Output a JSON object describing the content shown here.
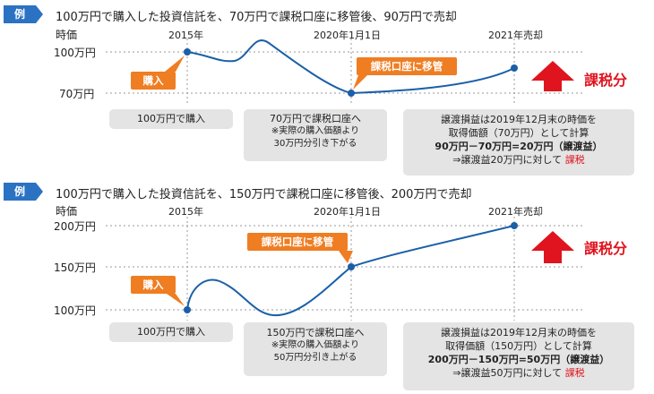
{
  "examples": [
    {
      "tag": "例",
      "heading": "100万円で購入した投資信託を、70万円で課税口座に移管後、90万円で売却",
      "y_axis_title": "時価",
      "y_labels": [
        "100万円",
        "70万円"
      ],
      "x_labels": [
        "2015年",
        "2020年1月1日",
        "2021年売却"
      ],
      "callout_buy": "購入",
      "callout_transfer": "課税口座に移管",
      "taxed_label": "課税分",
      "boxes": {
        "buy": "100万円で購入",
        "transfer_main": "70万円で課税口座へ",
        "transfer_note1": "※実際の購入価額より",
        "transfer_note2": "30万円分引き下がる",
        "calc1": "譲渡損益は2019年12月末の時価を",
        "calc2": "取得価額（70万円）として計算",
        "calc3": "90万円－70万円=20万円（譲渡益）",
        "calc4_prefix": "⇒譲渡益20万円に対して",
        "calc4_taxed": "課税"
      },
      "chart_data": {
        "type": "line",
        "x": [
          "2015年",
          "2020年1月1日",
          "2021年売却"
        ],
        "points": [
          100,
          70,
          90
        ],
        "ylabel": "時価",
        "y_unit": "万円"
      }
    },
    {
      "tag": "例",
      "heading": "100万円で購入した投資信託を、150万円で課税口座に移管後、200万円で売却",
      "y_axis_title": "時価",
      "y_labels": [
        "200万円",
        "150万円",
        "100万円"
      ],
      "x_labels": [
        "2015年",
        "2020年1月1日",
        "2021年売却"
      ],
      "callout_buy": "購入",
      "callout_transfer": "課税口座に移管",
      "taxed_label": "課税分",
      "boxes": {
        "buy": "100万円で購入",
        "transfer_main": "150万円で課税口座へ",
        "transfer_note1": "※実際の購入価額より",
        "transfer_note2": "50万円分引き上がる",
        "calc1": "譲渡損益は2019年12月末の時価を",
        "calc2": "取得価額（150万円）として計算",
        "calc3": "200万円－150万円=50万円（譲渡益）",
        "calc4_prefix": "⇒譲渡益50万円に対して",
        "calc4_taxed": "課税"
      },
      "chart_data": {
        "type": "line",
        "x": [
          "2015年",
          "2020年1月1日",
          "2021年売却"
        ],
        "points": [
          100,
          150,
          200
        ],
        "ylabel": "時価",
        "y_unit": "万円"
      }
    }
  ],
  "colors": {
    "tag": "#2b72c3",
    "line": "#1a5fa8",
    "callout": "#ef7d22",
    "taxed": "#e0141e",
    "box": "#e4e4e4"
  }
}
